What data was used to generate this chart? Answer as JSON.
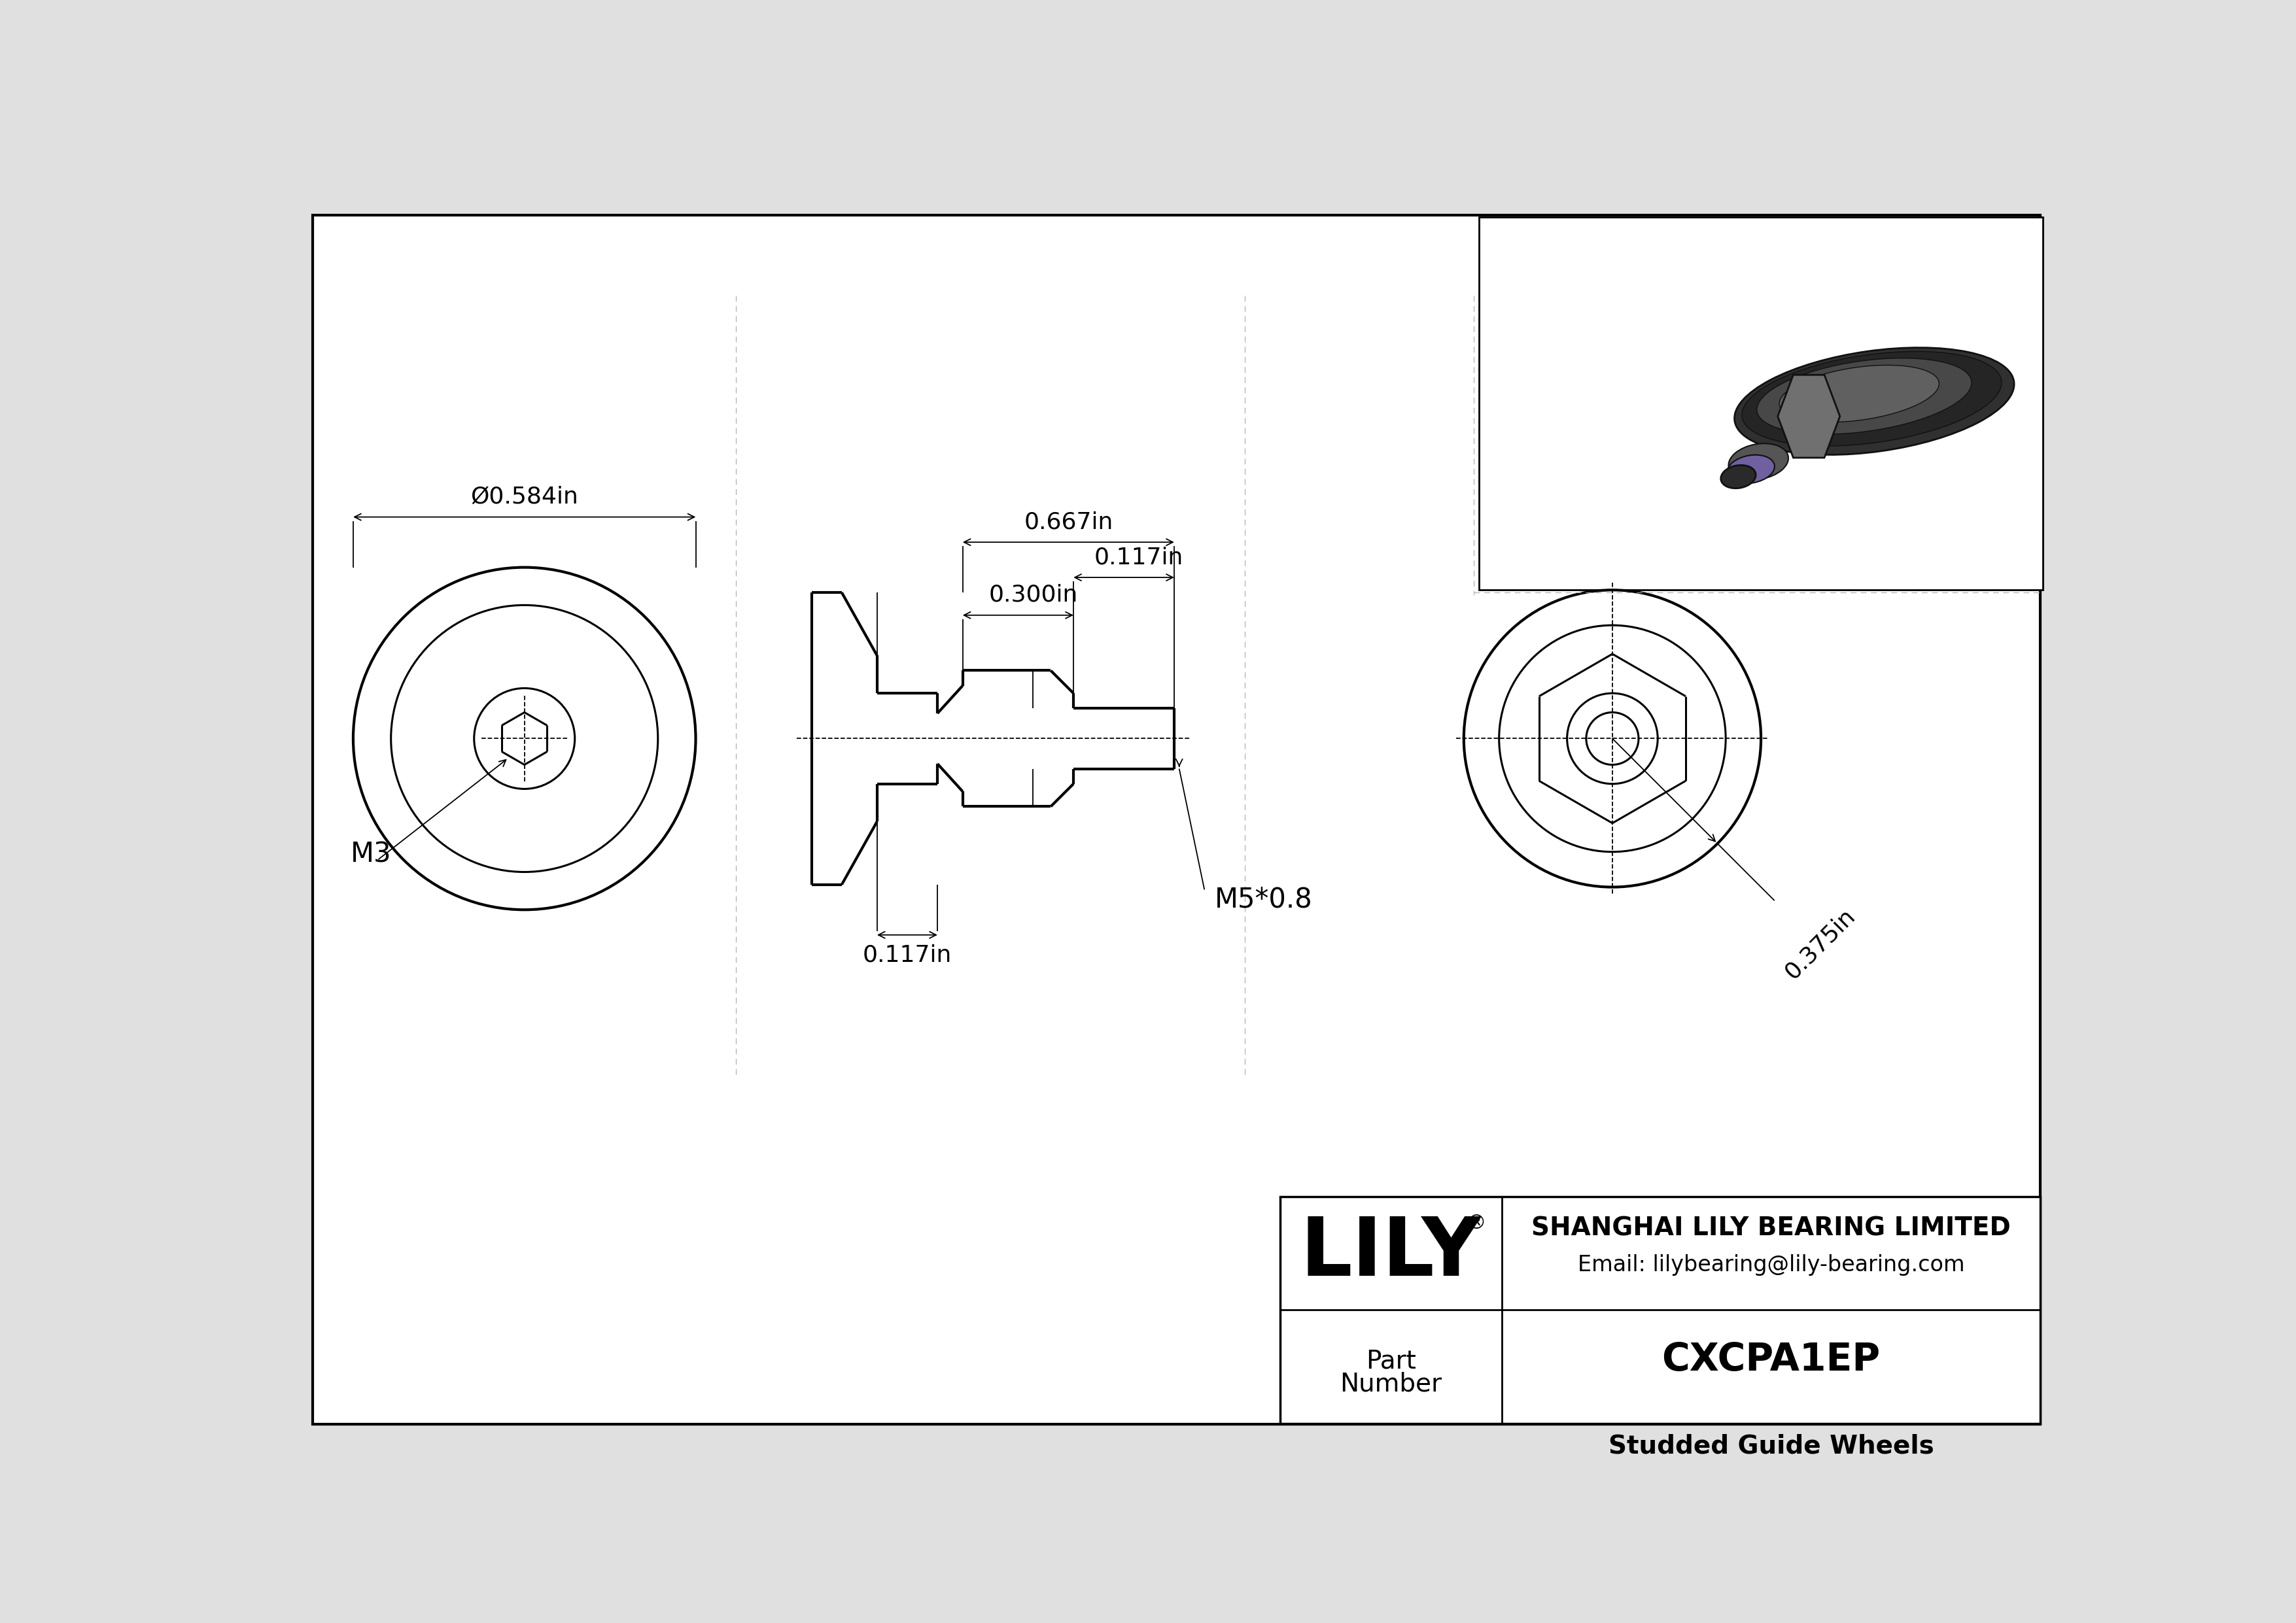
{
  "bg_color": "#e0e0e0",
  "white": "#ffffff",
  "black": "#000000",
  "company": "SHANGHAI LILY BEARING LIMITED",
  "email": "Email: lilybearing@lily-bearing.com",
  "part_number": "CXCPA1EP",
  "part_desc": "Studded Guide Wheels",
  "logo_text": "LILY",
  "dim_diameter": "Ø0.584in",
  "dim_667": "0.667in",
  "dim_117_top": "0.117in",
  "dim_300": "0.300in",
  "dim_117_bot": "0.117in",
  "dim_m3": "M3",
  "dim_m5": "M5*0.8",
  "dim_375": "0.375in",
  "lw": 2.2,
  "lw_thin": 1.3,
  "lw_thick": 3.0,
  "fs_dim": 26,
  "fs_label": 30,
  "fs_logo": 90,
  "fs_company": 28,
  "fs_email": 24,
  "fs_part": 42,
  "fs_part_label": 28
}
